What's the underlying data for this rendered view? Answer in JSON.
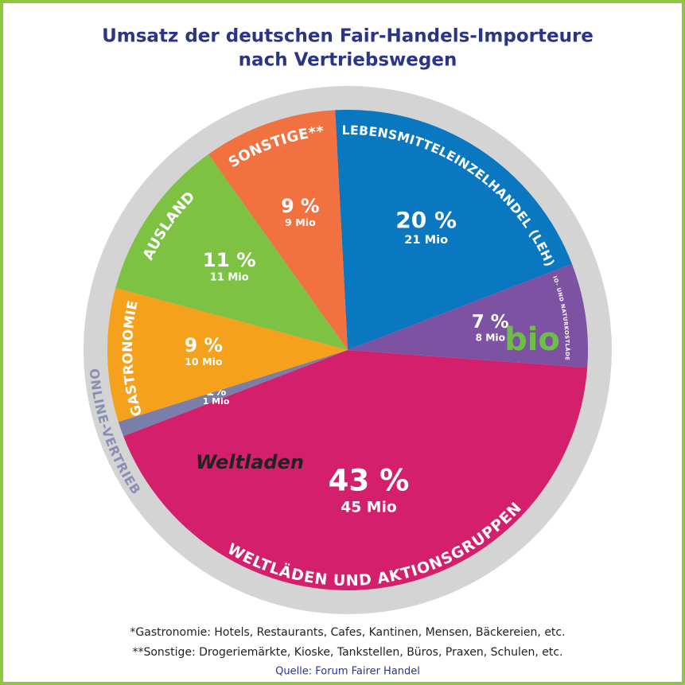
{
  "chart_data": {
    "type": "pie",
    "title": [
      "Umsatz der deutschen Fair-Handels-Importeure",
      "nach Vertriebswegen"
    ],
    "categories": [
      "LEBENSMITTELEINZELHANDEL (LEH)",
      "BIO- UND NATURKOSTLÄDEN",
      "WELTLÄDEN UND AKTIONSGRUPPEN",
      "ONLINE-VERTRIEB",
      "GASTRONOMIE*",
      "AUSLAND",
      "SONSTIGE**"
    ],
    "values": [
      20,
      7,
      43,
      1,
      9,
      11,
      9
    ],
    "value_labels": [
      "20 %",
      "7 %",
      "43 %",
      "1%",
      "9 %",
      "11 %",
      "9 %"
    ],
    "amount_labels": [
      "21 Mio",
      "8 Mio",
      "45 Mio",
      "1 Mio",
      "10 Mio",
      "11 Mio",
      "9 Mio"
    ],
    "colors": [
      "#0a77c1",
      "#7d52a2",
      "#d31f6c",
      "#7b7ea8",
      "#f5a11c",
      "#7dc242",
      "#f27141"
    ],
    "logos": [
      "bio",
      "Weltladen"
    ],
    "notes": [
      "*Gastronomie: Hotels, Restaurants, Cafes, Kantinen, Mensen, Bäckereien, etc.",
      "**Sonstige: Drogeriemärkte, Kioske, Tankstellen, Büros, Praxen, Schulen, etc."
    ],
    "source": "Quelle: Forum Fairer Handel"
  }
}
